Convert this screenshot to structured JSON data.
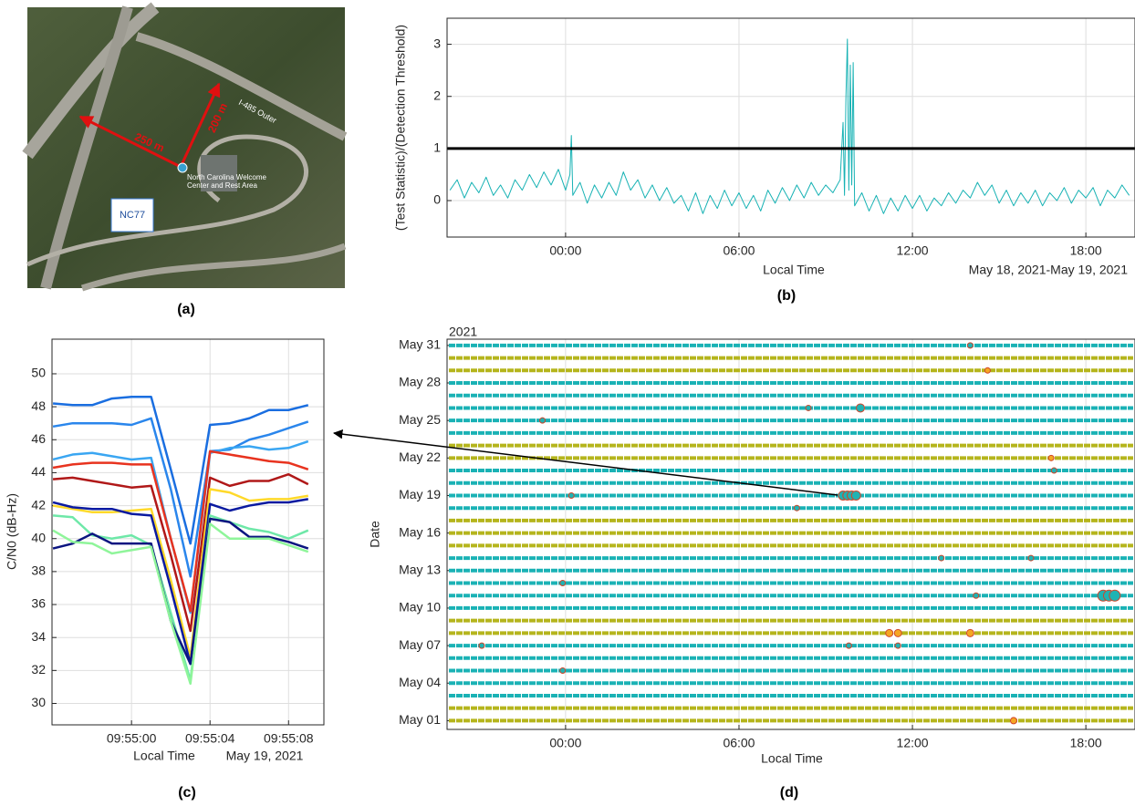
{
  "panel_labels": [
    "(a)",
    "(b)",
    "(c)",
    "(d)"
  ],
  "map": {
    "distance_1": "250 m",
    "distance_2": "200 m",
    "road": "I-485 Outer",
    "place": "North Carolina Welcome Center and Rest Area",
    "route_box": "NC77"
  },
  "chart_data": [
    {
      "type": "line",
      "xlabel": "Local Time",
      "ylabel": "(Test Statistic)/(Detection Threshold)",
      "date_label": "May 18, 2021-May 19, 2021",
      "x": [
        -4,
        -3.75,
        -3.5,
        -3.25,
        -3,
        -2.75,
        -2.5,
        -2.25,
        -2,
        -1.75,
        -1.5,
        -1.25,
        -1,
        -0.75,
        -0.5,
        -0.25,
        0,
        0.15,
        0.2,
        0.25,
        0.5,
        0.75,
        1,
        1.25,
        1.5,
        1.75,
        2,
        2.25,
        2.5,
        2.75,
        3,
        3.25,
        3.5,
        3.75,
        4,
        4.25,
        4.5,
        4.75,
        5,
        5.25,
        5.5,
        5.75,
        6,
        6.25,
        6.5,
        6.75,
        7,
        7.25,
        7.5,
        7.75,
        8,
        8.25,
        8.5,
        8.75,
        9,
        9.25,
        9.5,
        9.6,
        9.65,
        9.7,
        9.75,
        9.8,
        9.85,
        9.9,
        9.95,
        10,
        10.25,
        10.5,
        10.75,
        11,
        11.25,
        11.5,
        11.75,
        12,
        12.25,
        12.5,
        12.75,
        13,
        13.25,
        13.5,
        13.75,
        14,
        14.25,
        14.5,
        14.75,
        15,
        15.25,
        15.5,
        15.75,
        16,
        16.25,
        16.5,
        16.75,
        17,
        17.25,
        17.5,
        17.75,
        18,
        18.25,
        18.5,
        18.75,
        19,
        19.25,
        19.5
      ],
      "series": [
        {
          "color": "#17b2b4",
          "values": [
            0.2,
            0.4,
            0.05,
            0.35,
            0.15,
            0.45,
            0.1,
            0.3,
            0.05,
            0.4,
            0.2,
            0.5,
            0.25,
            0.55,
            0.3,
            0.6,
            0.2,
            0.5,
            1.25,
            0.1,
            0.35,
            -0.05,
            0.3,
            0.05,
            0.35,
            0.1,
            0.55,
            0.2,
            0.4,
            0.05,
            0.3,
            0,
            0.25,
            -0.05,
            0.1,
            -0.2,
            0.15,
            -0.25,
            0.1,
            -0.15,
            0.2,
            -0.1,
            0.15,
            -0.15,
            0.1,
            -0.2,
            0.2,
            -0.05,
            0.25,
            0,
            0.3,
            0.05,
            0.35,
            0.1,
            0.3,
            0.15,
            0.4,
            1.5,
            0.1,
            2.0,
            3.1,
            0.2,
            2.6,
            0.3,
            2.65,
            -0.1,
            0.15,
            -0.2,
            0.1,
            -0.25,
            0.05,
            -0.2,
            0.1,
            -0.15,
            0.1,
            -0.2,
            0.05,
            -0.1,
            0.15,
            -0.05,
            0.2,
            0.05,
            0.35,
            0.1,
            0.3,
            -0.05,
            0.2,
            -0.1,
            0.15,
            -0.05,
            0.2,
            -0.1,
            0.15,
            0,
            0.25,
            -0.05,
            0.2,
            0.05,
            0.25,
            -0.1,
            0.2,
            0.05,
            0.3,
            0.1
          ]
        }
      ],
      "threshold": 1,
      "threshold_color": "#000000",
      "xlim": [
        -4.1,
        19.7
      ],
      "xticks": [
        {
          "value": 0,
          "label": "00:00"
        },
        {
          "value": 6,
          "label": "06:00"
        },
        {
          "value": 12,
          "label": "12:00"
        },
        {
          "value": 18,
          "label": "18:00"
        }
      ],
      "ylim": [
        -0.7,
        3.5
      ],
      "yticks": [
        0,
        1,
        2,
        3
      ],
      "grid": true
    },
    {
      "type": "line",
      "xlabel": "Local Time",
      "ylabel": "C/N0 (dB-Hz)",
      "date_label": "May 19, 2021",
      "x": [
        -4,
        -3,
        -2,
        -1,
        0,
        1,
        2,
        3,
        4,
        5,
        6,
        7,
        8,
        9
      ],
      "series": [
        {
          "color": "#1a6ee0",
          "values": [
            48.2,
            48.1,
            48.1,
            48.5,
            48.6,
            48.6,
            44.2,
            39.7,
            46.9,
            47,
            47.3,
            47.8,
            47.8,
            48.1
          ]
        },
        {
          "color": "#2a86ec",
          "values": [
            46.8,
            47,
            47,
            47,
            46.9,
            47.3,
            43,
            37.7,
            45.3,
            45.4,
            46,
            46.3,
            46.7,
            47.1
          ]
        },
        {
          "color": "#3aa6f2",
          "values": [
            44.8,
            45.1,
            45.2,
            45,
            44.8,
            44.9,
            40,
            35.5,
            45.2,
            45.5,
            45.6,
            45.4,
            45.5,
            45.9
          ]
        },
        {
          "color": "#e8331f",
          "values": [
            44.3,
            44.5,
            44.6,
            44.6,
            44.5,
            44.5,
            40,
            35.6,
            45.3,
            45.1,
            44.9,
            44.7,
            44.6,
            44.2
          ]
        },
        {
          "color": "#b01818",
          "values": [
            43.6,
            43.7,
            43.5,
            43.3,
            43.1,
            43.2,
            39,
            34.4,
            43.7,
            43.2,
            43.5,
            43.5,
            43.9,
            43.3
          ]
        },
        {
          "color": "#ffd92a",
          "values": [
            42,
            41.8,
            41.6,
            41.6,
            41.7,
            41.8,
            37.5,
            32.8,
            43,
            42.8,
            42.3,
            42.4,
            42.4,
            42.6
          ]
        },
        {
          "color": "#0a1aa0",
          "values": [
            42.2,
            41.9,
            41.8,
            41.8,
            41.5,
            41.4,
            37,
            32.4,
            42.1,
            41.7,
            42,
            42.2,
            42.2,
            42.4
          ]
        },
        {
          "color": "#6ee8a8",
          "values": [
            41.4,
            41.3,
            40.2,
            40,
            40.2,
            39.6,
            35.5,
            31.4,
            41.4,
            41,
            40.6,
            40.4,
            40,
            40.5
          ]
        },
        {
          "color": "#0b1580",
          "values": [
            39.4,
            39.7,
            40.3,
            39.7,
            39.7,
            39.7,
            35,
            32.4,
            41.2,
            41,
            40.1,
            40.1,
            39.8,
            39.4
          ]
        },
        {
          "color": "#8ff59a",
          "values": [
            40.5,
            39.8,
            39.7,
            39.1,
            39.3,
            39.5,
            35,
            31.2,
            40.9,
            40,
            40,
            40,
            39.6,
            39.2
          ]
        }
      ],
      "xlim": [
        -4.05,
        9.8
      ],
      "xticks": [
        {
          "value": 0,
          "label": "09:55:00"
        },
        {
          "value": 4,
          "label": "09:55:04"
        },
        {
          "value": 8,
          "label": "09:55:08"
        }
      ],
      "ylim": [
        28.7,
        52.1
      ],
      "yticks": [
        30,
        32,
        34,
        36,
        38,
        40,
        42,
        44,
        46,
        48,
        50
      ],
      "grid": true
    },
    {
      "type": "scatter",
      "xlabel": "Local Time",
      "ylabel": "Date",
      "year_label": "2021",
      "days": [
        1,
        2,
        3,
        4,
        5,
        6,
        7,
        8,
        9,
        10,
        11,
        12,
        13,
        14,
        15,
        16,
        17,
        18,
        19,
        20,
        21,
        22,
        23,
        24,
        25,
        26,
        27,
        28,
        29,
        30,
        31
      ],
      "day_colors": [
        "#b5b51c",
        "#b5b51c",
        "#1ab2b5",
        "#1ab2b5",
        "#1ab2b5",
        "#1ab2b5",
        "#1ab2b5",
        "#b5b51c",
        "#b5b51c",
        "#1ab2b5",
        "#1ab2b5",
        "#1ab2b5",
        "#1ab2b5",
        "#1ab2b5",
        "#b5b51c",
        "#b5b51c",
        "#b5b51c",
        "#1ab2b5",
        "#1ab2b5",
        "#1ab2b5",
        "#1ab2b5",
        "#b5b51c",
        "#b5b51c",
        "#1ab2b5",
        "#1ab2b5",
        "#1ab2b5",
        "#1ab2b5",
        "#1ab2b5",
        "#b5b51c",
        "#b5b51c",
        "#1ab2b5"
      ],
      "x": [
        14.0,
        14.6,
        8.4,
        10.2,
        -0.8,
        16.8,
        16.9,
        9.6,
        9.75,
        9.9,
        10.05,
        0.2,
        8.0,
        13.0,
        16.1,
        -0.1,
        14.2,
        18.6,
        18.8,
        19.0,
        11.2,
        11.5,
        14.0,
        -2.9,
        9.8,
        11.5,
        -0.1,
        15.5
      ],
      "y": [
        31,
        29,
        26,
        26,
        25,
        22,
        21,
        19,
        19,
        19,
        19,
        19,
        18,
        14,
        14,
        12,
        11,
        11,
        11,
        11,
        8,
        8,
        8,
        7,
        7,
        7,
        5,
        1
      ],
      "sizes": [
        3,
        3,
        3,
        4.5,
        3,
        3,
        3,
        5,
        5,
        5,
        5,
        3,
        3,
        3,
        3,
        3,
        3,
        6,
        6,
        6,
        4,
        4,
        4,
        3,
        3,
        3,
        3,
        3.5
      ],
      "colors": [
        "#1fb3b3",
        "#f5a623",
        "#1fb3b3",
        "#1fb3b3",
        "#1fb3b3",
        "#f5a623",
        "#1fb3b3",
        "#1fb3b3",
        "#1fb3b3",
        "#1fb3b3",
        "#1fb3b3",
        "#1fb3b3",
        "#1fb3b3",
        "#1fb3b3",
        "#1fb3b3",
        "#1fb3b3",
        "#1fb3b3",
        "#1fb3b3",
        "#1fb3b3",
        "#1fb3b3",
        "#f5a623",
        "#f5a623",
        "#f5a623",
        "#1fb3b3",
        "#1fb3b3",
        "#1fb3b3",
        "#1fb3b3",
        "#f5a623"
      ],
      "edge_color": "#d0452a",
      "xlim": [
        -4.1,
        19.7
      ],
      "xticks": [
        {
          "value": 0,
          "label": "00:00"
        },
        {
          "value": 6,
          "label": "06:00"
        },
        {
          "value": 12,
          "label": "12:00"
        },
        {
          "value": 18,
          "label": "18:00"
        }
      ],
      "ylim": [
        0.3,
        31.5
      ],
      "yticks": [
        {
          "value": 1,
          "label": "May 01"
        },
        {
          "value": 4,
          "label": "May 04"
        },
        {
          "value": 7,
          "label": "May 07"
        },
        {
          "value": 10,
          "label": "May 10"
        },
        {
          "value": 13,
          "label": "May 13"
        },
        {
          "value": 16,
          "label": "May 16"
        },
        {
          "value": 19,
          "label": "May 19"
        },
        {
          "value": 22,
          "label": "May 22"
        },
        {
          "value": 25,
          "label": "May 25"
        },
        {
          "value": 28,
          "label": "May 28"
        },
        {
          "value": 31,
          "label": "May 31"
        }
      ],
      "grid": true
    }
  ]
}
